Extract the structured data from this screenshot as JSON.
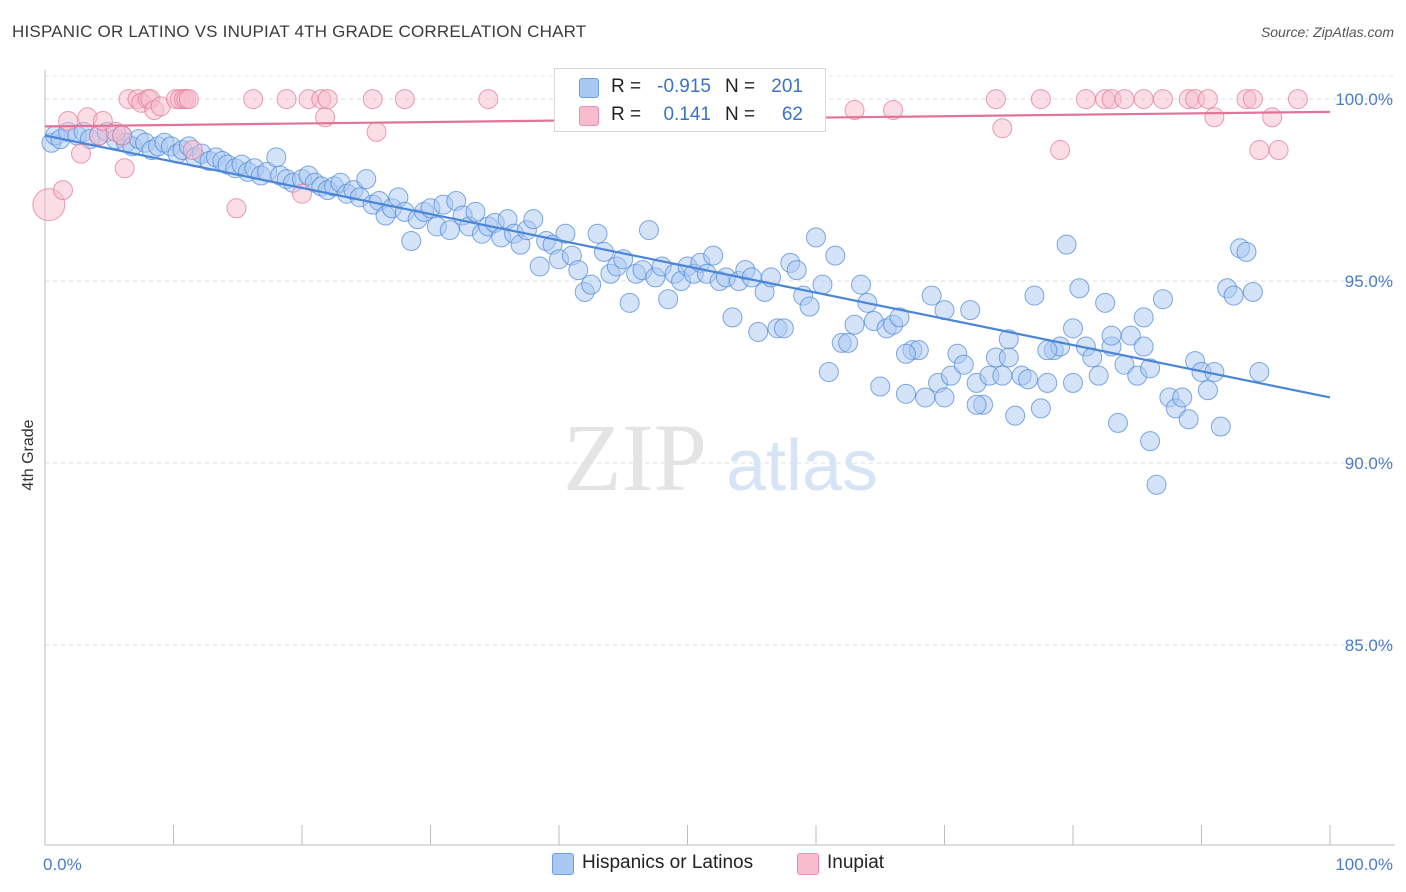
{
  "title": "HISPANIC OR LATINO VS INUPIAT 4TH GRADE CORRELATION CHART",
  "source": "Source: ZipAtlas.com",
  "watermark": {
    "zip": "ZIP",
    "atlas": "atlas"
  },
  "legend": {
    "r_label": "R =",
    "n_label": "N =",
    "rows": [
      {
        "r": "-0.915",
        "n": "201",
        "color": "#a9c8f2",
        "border": "#6a9fe0"
      },
      {
        "r": "0.141",
        "n": "62",
        "color": "#f7bccd",
        "border": "#e890aa"
      }
    ]
  },
  "bottom_legend": [
    {
      "label": "Hispanics or Latinos",
      "color": "#a9c8f2",
      "border": "#6a9fe0"
    },
    {
      "label": "Inupiat",
      "color": "#f7bccd",
      "border": "#e890aa"
    }
  ],
  "chart_data": {
    "type": "scatter",
    "title": "HISPANIC OR LATINO VS INUPIAT 4TH GRADE CORRELATION CHART",
    "xlabel": "",
    "ylabel": "4th Grade",
    "xlim": [
      0,
      100
    ],
    "ylim": [
      79.5,
      100.8
    ],
    "x_tick_labels": [
      {
        "value": 0,
        "label": "0.0%"
      },
      {
        "value": 100,
        "label": "100.0%"
      }
    ],
    "y_tick_labels": [
      {
        "value": 100,
        "label": "100.0%"
      },
      {
        "value": 95,
        "label": "95.0%"
      },
      {
        "value": 90,
        "label": "90.0%"
      },
      {
        "value": 85,
        "label": "85.0%"
      }
    ],
    "grid": true,
    "legend_position": "top-center",
    "series": [
      {
        "name": "Hispanics or Latinos",
        "color": "#4a86d8",
        "fill": "#a9c8f2",
        "trend": [
          [
            0,
            99.0
          ],
          [
            100,
            91.8
          ]
        ],
        "points": [
          [
            0.5,
            98.8
          ],
          [
            0.8,
            99.0
          ],
          [
            1.2,
            98.9
          ],
          [
            1.8,
            99.1
          ],
          [
            2.5,
            99.0
          ],
          [
            3.0,
            99.1
          ],
          [
            3.5,
            98.9
          ],
          [
            4.2,
            99.0
          ],
          [
            4.8,
            99.1
          ],
          [
            5.5,
            98.9
          ],
          [
            6.0,
            99.0
          ],
          [
            6.3,
            98.8
          ],
          [
            6.8,
            98.7
          ],
          [
            7.3,
            98.9
          ],
          [
            7.8,
            98.8
          ],
          [
            8.3,
            98.6
          ],
          [
            8.8,
            98.7
          ],
          [
            9.3,
            98.8
          ],
          [
            9.8,
            98.7
          ],
          [
            10.3,
            98.5
          ],
          [
            10.7,
            98.6
          ],
          [
            11.2,
            98.7
          ],
          [
            11.7,
            98.4
          ],
          [
            12.2,
            98.5
          ],
          [
            12.8,
            98.3
          ],
          [
            13.3,
            98.4
          ],
          [
            13.8,
            98.3
          ],
          [
            14.2,
            98.2
          ],
          [
            14.8,
            98.1
          ],
          [
            15.3,
            98.2
          ],
          [
            15.8,
            98.0
          ],
          [
            16.3,
            98.1
          ],
          [
            16.8,
            97.9
          ],
          [
            17.3,
            98.0
          ],
          [
            18.0,
            98.4
          ],
          [
            18.3,
            97.9
          ],
          [
            18.8,
            97.8
          ],
          [
            19.3,
            97.7
          ],
          [
            20.0,
            97.8
          ],
          [
            20.5,
            97.9
          ],
          [
            21.0,
            97.7
          ],
          [
            21.5,
            97.6
          ],
          [
            22.0,
            97.5
          ],
          [
            22.5,
            97.6
          ],
          [
            23.0,
            97.7
          ],
          [
            23.5,
            97.4
          ],
          [
            24.0,
            97.5
          ],
          [
            24.5,
            97.3
          ],
          [
            25.0,
            97.8
          ],
          [
            25.5,
            97.1
          ],
          [
            26.0,
            97.2
          ],
          [
            26.5,
            96.8
          ],
          [
            27.0,
            97.0
          ],
          [
            27.5,
            97.3
          ],
          [
            28.0,
            96.9
          ],
          [
            28.5,
            96.1
          ],
          [
            29.0,
            96.7
          ],
          [
            29.5,
            96.9
          ],
          [
            30.0,
            97.0
          ],
          [
            30.5,
            96.5
          ],
          [
            31.0,
            97.1
          ],
          [
            31.5,
            96.4
          ],
          [
            32.0,
            97.2
          ],
          [
            32.5,
            96.8
          ],
          [
            33.0,
            96.5
          ],
          [
            33.5,
            96.9
          ],
          [
            34.0,
            96.3
          ],
          [
            34.5,
            96.5
          ],
          [
            35.0,
            96.6
          ],
          [
            35.5,
            96.2
          ],
          [
            36.0,
            96.7
          ],
          [
            36.5,
            96.3
          ],
          [
            37.0,
            96.0
          ],
          [
            37.5,
            96.4
          ],
          [
            38.0,
            96.7
          ],
          [
            38.5,
            95.4
          ],
          [
            39.0,
            96.1
          ],
          [
            39.5,
            96.0
          ],
          [
            40.0,
            95.6
          ],
          [
            40.5,
            96.3
          ],
          [
            41.0,
            95.7
          ],
          [
            41.5,
            95.3
          ],
          [
            42.0,
            94.7
          ],
          [
            42.5,
            94.9
          ],
          [
            43.0,
            96.3
          ],
          [
            43.5,
            95.8
          ],
          [
            44.0,
            95.2
          ],
          [
            44.5,
            95.4
          ],
          [
            45.0,
            95.6
          ],
          [
            45.5,
            94.4
          ],
          [
            46.0,
            95.2
          ],
          [
            46.5,
            95.3
          ],
          [
            47.0,
            96.4
          ],
          [
            47.5,
            95.1
          ],
          [
            48.0,
            95.4
          ],
          [
            48.5,
            94.5
          ],
          [
            49.0,
            95.2
          ],
          [
            49.5,
            95.0
          ],
          [
            50.0,
            95.4
          ],
          [
            50.5,
            95.2
          ],
          [
            51.0,
            95.5
          ],
          [
            51.5,
            95.2
          ],
          [
            52.0,
            95.7
          ],
          [
            52.5,
            95.0
          ],
          [
            53.0,
            95.1
          ],
          [
            53.5,
            94.0
          ],
          [
            54.0,
            95.0
          ],
          [
            54.5,
            95.3
          ],
          [
            55.0,
            95.1
          ],
          [
            55.5,
            93.6
          ],
          [
            56.0,
            94.7
          ],
          [
            56.5,
            95.1
          ],
          [
            57.0,
            93.7
          ],
          [
            57.5,
            93.7
          ],
          [
            58.0,
            95.5
          ],
          [
            58.5,
            95.3
          ],
          [
            59.0,
            94.6
          ],
          [
            59.5,
            94.3
          ],
          [
            60.0,
            96.2
          ],
          [
            60.5,
            94.9
          ],
          [
            61.0,
            92.5
          ],
          [
            61.5,
            95.7
          ],
          [
            62.0,
            93.3
          ],
          [
            62.5,
            93.3
          ],
          [
            63.0,
            93.8
          ],
          [
            63.5,
            94.9
          ],
          [
            64.0,
            94.4
          ],
          [
            64.5,
            93.9
          ],
          [
            65.0,
            92.1
          ],
          [
            65.5,
            93.7
          ],
          [
            66.0,
            93.8
          ],
          [
            66.5,
            94.0
          ],
          [
            67.0,
            91.9
          ],
          [
            67.5,
            93.1
          ],
          [
            68.0,
            93.1
          ],
          [
            68.5,
            91.8
          ],
          [
            69.0,
            94.6
          ],
          [
            69.5,
            92.2
          ],
          [
            70.0,
            94.2
          ],
          [
            70.5,
            92.4
          ],
          [
            71.0,
            93.0
          ],
          [
            71.5,
            92.7
          ],
          [
            72.0,
            94.2
          ],
          [
            72.5,
            92.2
          ],
          [
            73.0,
            91.6
          ],
          [
            73.5,
            92.4
          ],
          [
            74.0,
            92.9
          ],
          [
            74.5,
            92.4
          ],
          [
            75.0,
            93.4
          ],
          [
            75.5,
            91.3
          ],
          [
            76.0,
            92.4
          ],
          [
            76.5,
            92.3
          ],
          [
            77.0,
            94.6
          ],
          [
            77.5,
            91.5
          ],
          [
            78.0,
            92.2
          ],
          [
            78.5,
            93.1
          ],
          [
            79.0,
            93.2
          ],
          [
            79.5,
            96.0
          ],
          [
            80.0,
            93.7
          ],
          [
            80.5,
            94.8
          ],
          [
            81.0,
            93.2
          ],
          [
            81.5,
            92.9
          ],
          [
            82.0,
            92.4
          ],
          [
            82.5,
            94.4
          ],
          [
            83.0,
            93.2
          ],
          [
            83.5,
            91.1
          ],
          [
            84.0,
            92.7
          ],
          [
            84.5,
            93.5
          ],
          [
            85.0,
            92.4
          ],
          [
            85.5,
            94.0
          ],
          [
            86.0,
            90.6
          ],
          [
            86.5,
            89.4
          ],
          [
            87.0,
            94.5
          ],
          [
            87.5,
            91.8
          ],
          [
            88.0,
            91.5
          ],
          [
            88.5,
            91.8
          ],
          [
            89.0,
            91.2
          ],
          [
            89.5,
            92.8
          ],
          [
            90.0,
            92.5
          ],
          [
            90.5,
            92.0
          ],
          [
            91.0,
            92.5
          ],
          [
            91.5,
            91.0
          ],
          [
            92.0,
            94.8
          ],
          [
            92.5,
            94.6
          ],
          [
            93.0,
            95.9
          ],
          [
            93.5,
            95.8
          ],
          [
            94.0,
            94.7
          ],
          [
            94.5,
            92.5
          ],
          [
            85.5,
            93.2
          ],
          [
            86.0,
            92.6
          ],
          [
            83.0,
            93.5
          ],
          [
            80.0,
            92.2
          ],
          [
            78.0,
            93.1
          ],
          [
            75.0,
            92.9
          ],
          [
            72.5,
            91.6
          ],
          [
            70.0,
            91.8
          ],
          [
            67.0,
            93.0
          ]
        ]
      },
      {
        "name": "Inupiat",
        "color": "#e07595",
        "fill": "#f7bccd",
        "trend": [
          [
            0,
            99.25
          ],
          [
            100,
            99.65
          ]
        ],
        "points": [
          [
            0.3,
            97.1
          ],
          [
            1.4,
            97.5
          ],
          [
            1.8,
            99.4
          ],
          [
            2.8,
            98.5
          ],
          [
            3.3,
            99.5
          ],
          [
            4.2,
            99.0
          ],
          [
            4.5,
            99.4
          ],
          [
            5.5,
            99.1
          ],
          [
            6.0,
            99.0
          ],
          [
            6.2,
            98.1
          ],
          [
            6.5,
            100.0
          ],
          [
            7.2,
            100.0
          ],
          [
            7.5,
            99.9
          ],
          [
            8.0,
            100.0
          ],
          [
            8.2,
            100.0
          ],
          [
            8.5,
            99.7
          ],
          [
            9.0,
            99.8
          ],
          [
            10.2,
            100.0
          ],
          [
            10.5,
            100.0
          ],
          [
            10.8,
            100.0
          ],
          [
            11.0,
            100.0
          ],
          [
            11.2,
            100.0
          ],
          [
            11.5,
            98.6
          ],
          [
            14.9,
            97.0
          ],
          [
            16.2,
            100.0
          ],
          [
            18.8,
            100.0
          ],
          [
            20.0,
            97.4
          ],
          [
            20.5,
            100.0
          ],
          [
            21.5,
            100.0
          ],
          [
            21.8,
            99.5
          ],
          [
            22.0,
            100.0
          ],
          [
            25.5,
            100.0
          ],
          [
            25.8,
            99.1
          ],
          [
            28.0,
            100.0
          ],
          [
            34.5,
            100.0
          ],
          [
            47.5,
            100.0
          ],
          [
            48.0,
            100.0
          ],
          [
            50.0,
            100.0
          ],
          [
            54.0,
            100.0
          ],
          [
            55.0,
            100.0
          ],
          [
            63.0,
            99.7
          ],
          [
            66.0,
            99.7
          ],
          [
            74.0,
            100.0
          ],
          [
            74.5,
            99.2
          ],
          [
            77.5,
            100.0
          ],
          [
            79.0,
            98.6
          ],
          [
            81.0,
            100.0
          ],
          [
            82.5,
            100.0
          ],
          [
            83.0,
            100.0
          ],
          [
            84.0,
            100.0
          ],
          [
            85.5,
            100.0
          ],
          [
            87.0,
            100.0
          ],
          [
            89.0,
            100.0
          ],
          [
            89.5,
            100.0
          ],
          [
            90.5,
            100.0
          ],
          [
            91.0,
            99.5
          ],
          [
            93.5,
            100.0
          ],
          [
            94.0,
            100.0
          ],
          [
            94.5,
            98.6
          ],
          [
            95.5,
            99.5
          ],
          [
            96.0,
            98.6
          ],
          [
            97.5,
            100.0
          ]
        ]
      }
    ]
  }
}
